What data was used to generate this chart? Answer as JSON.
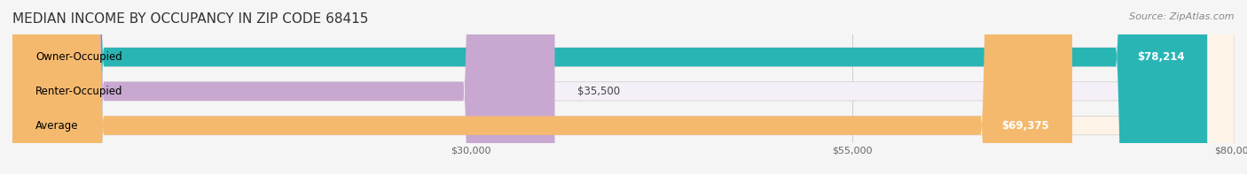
{
  "title": "MEDIAN INCOME BY OCCUPANCY IN ZIP CODE 68415",
  "source_text": "Source: ZipAtlas.com",
  "categories": [
    "Owner-Occupied",
    "Renter-Occupied",
    "Average"
  ],
  "values": [
    78214,
    35500,
    69375
  ],
  "bar_colors": [
    "#2ab5b5",
    "#c8a8d0",
    "#f5b96e"
  ],
  "bar_bg_colors": [
    "#e8f8f8",
    "#f5f0f8",
    "#fdf3e7"
  ],
  "value_labels": [
    "$78,214",
    "$35,500",
    "$69,375"
  ],
  "xmax": 80000,
  "xticks": [
    30000,
    55000,
    80000
  ],
  "xtick_labels": [
    "$30,000",
    "$55,000",
    "$80,000"
  ],
  "background_color": "#f5f5f5",
  "title_fontsize": 11,
  "source_fontsize": 8,
  "label_fontsize": 8.5,
  "value_fontsize": 8.5
}
